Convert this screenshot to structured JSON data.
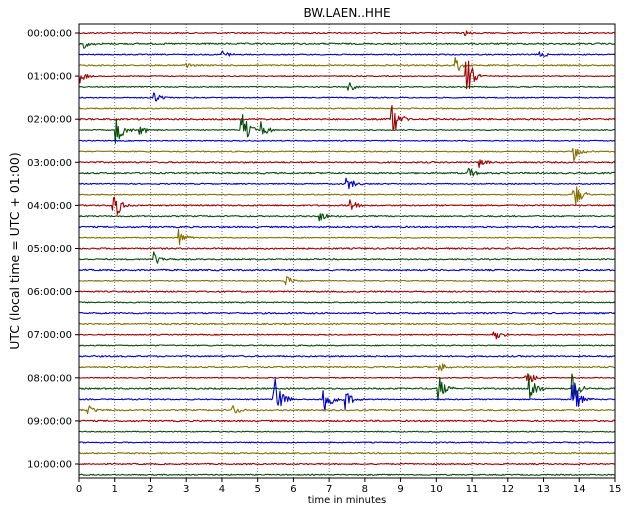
{
  "chart_data": {
    "type": "line",
    "title": "BW.LAEN..HHE",
    "xlabel": "time in minutes",
    "ylabel": "UTC (local time = UTC + 01:00)",
    "xlim": [
      0,
      15
    ],
    "x_ticks": [
      0,
      1,
      2,
      3,
      4,
      5,
      6,
      7,
      8,
      9,
      10,
      11,
      12,
      13,
      14,
      15
    ],
    "x_tick_labels": [
      "0",
      "1",
      "2",
      "3",
      "4",
      "5",
      "6",
      "7",
      "8",
      "9",
      "10",
      "11",
      "12",
      "13",
      "14",
      "15"
    ],
    "y_tick_labels": [
      "00:00:00",
      "01:00:00",
      "02:00:00",
      "03:00:00",
      "04:00:00",
      "05:00:00",
      "06:00:00",
      "07:00:00",
      "08:00:00",
      "09:00:00",
      "10:00:00"
    ],
    "trace_interval_minutes": 15,
    "trace_count": 42,
    "grid": "vertical dotted",
    "colors": [
      "#a00000",
      "#0a4d0a",
      "#0000cc",
      "#857000"
    ],
    "events": [
      {
        "trace": 0,
        "minute": 10.8,
        "amplitude": 0.2
      },
      {
        "trace": 1,
        "minute": 0.15,
        "amplitude": 0.3
      },
      {
        "trace": 2,
        "minute": 4.0,
        "amplitude": 0.35
      },
      {
        "trace": 2,
        "minute": 12.9,
        "amplitude": 0.25
      },
      {
        "trace": 3,
        "minute": 2.95,
        "amplitude": 0.4
      },
      {
        "trace": 3,
        "minute": 10.55,
        "amplitude": 0.6
      },
      {
        "trace": 4,
        "minute": 0.05,
        "amplitude": 0.45
      },
      {
        "trace": 4,
        "minute": 10.85,
        "amplitude": 1.4
      },
      {
        "trace": 5,
        "minute": 7.55,
        "amplitude": 0.35
      },
      {
        "trace": 6,
        "minute": 2.1,
        "amplitude": 0.5
      },
      {
        "trace": 8,
        "minute": 8.75,
        "amplitude": 1.6
      },
      {
        "trace": 9,
        "minute": 1.0,
        "amplitude": 1.4
      },
      {
        "trace": 9,
        "minute": 1.7,
        "amplitude": 0.6
      },
      {
        "trace": 9,
        "minute": 4.55,
        "amplitude": 1.3
      },
      {
        "trace": 9,
        "minute": 5.1,
        "amplitude": 0.6
      },
      {
        "trace": 11,
        "minute": 13.85,
        "amplitude": 0.6
      },
      {
        "trace": 12,
        "minute": 11.2,
        "amplitude": 0.4
      },
      {
        "trace": 13,
        "minute": 10.9,
        "amplitude": 0.45
      },
      {
        "trace": 14,
        "minute": 7.5,
        "amplitude": 0.6
      },
      {
        "trace": 15,
        "minute": 13.85,
        "amplitude": 1.1
      },
      {
        "trace": 16,
        "minute": 0.95,
        "amplitude": 1.3
      },
      {
        "trace": 16,
        "minute": 7.6,
        "amplitude": 0.6
      },
      {
        "trace": 17,
        "minute": 6.75,
        "amplitude": 0.4
      },
      {
        "trace": 19,
        "minute": 2.8,
        "amplitude": 0.6
      },
      {
        "trace": 21,
        "minute": 2.1,
        "amplitude": 0.5
      },
      {
        "trace": 23,
        "minute": 5.75,
        "amplitude": 0.6
      },
      {
        "trace": 28,
        "minute": 11.6,
        "amplitude": 0.6
      },
      {
        "trace": 31,
        "minute": 10.1,
        "amplitude": 0.4
      },
      {
        "trace": 32,
        "minute": 12.5,
        "amplitude": 0.9
      },
      {
        "trace": 33,
        "minute": 10.05,
        "amplitude": 1.0
      },
      {
        "trace": 33,
        "minute": 12.6,
        "amplitude": 1.2
      },
      {
        "trace": 33,
        "minute": 13.8,
        "amplitude": 1.2
      },
      {
        "trace": 34,
        "minute": 5.45,
        "amplitude": 1.8
      },
      {
        "trace": 34,
        "minute": 6.85,
        "amplitude": 1.5
      },
      {
        "trace": 34,
        "minute": 7.45,
        "amplitude": 0.7
      },
      {
        "trace": 34,
        "minute": 13.8,
        "amplitude": 1.8
      },
      {
        "trace": 35,
        "minute": 0.25,
        "amplitude": 0.4
      },
      {
        "trace": 35,
        "minute": 4.3,
        "amplitude": 0.4
      }
    ]
  }
}
